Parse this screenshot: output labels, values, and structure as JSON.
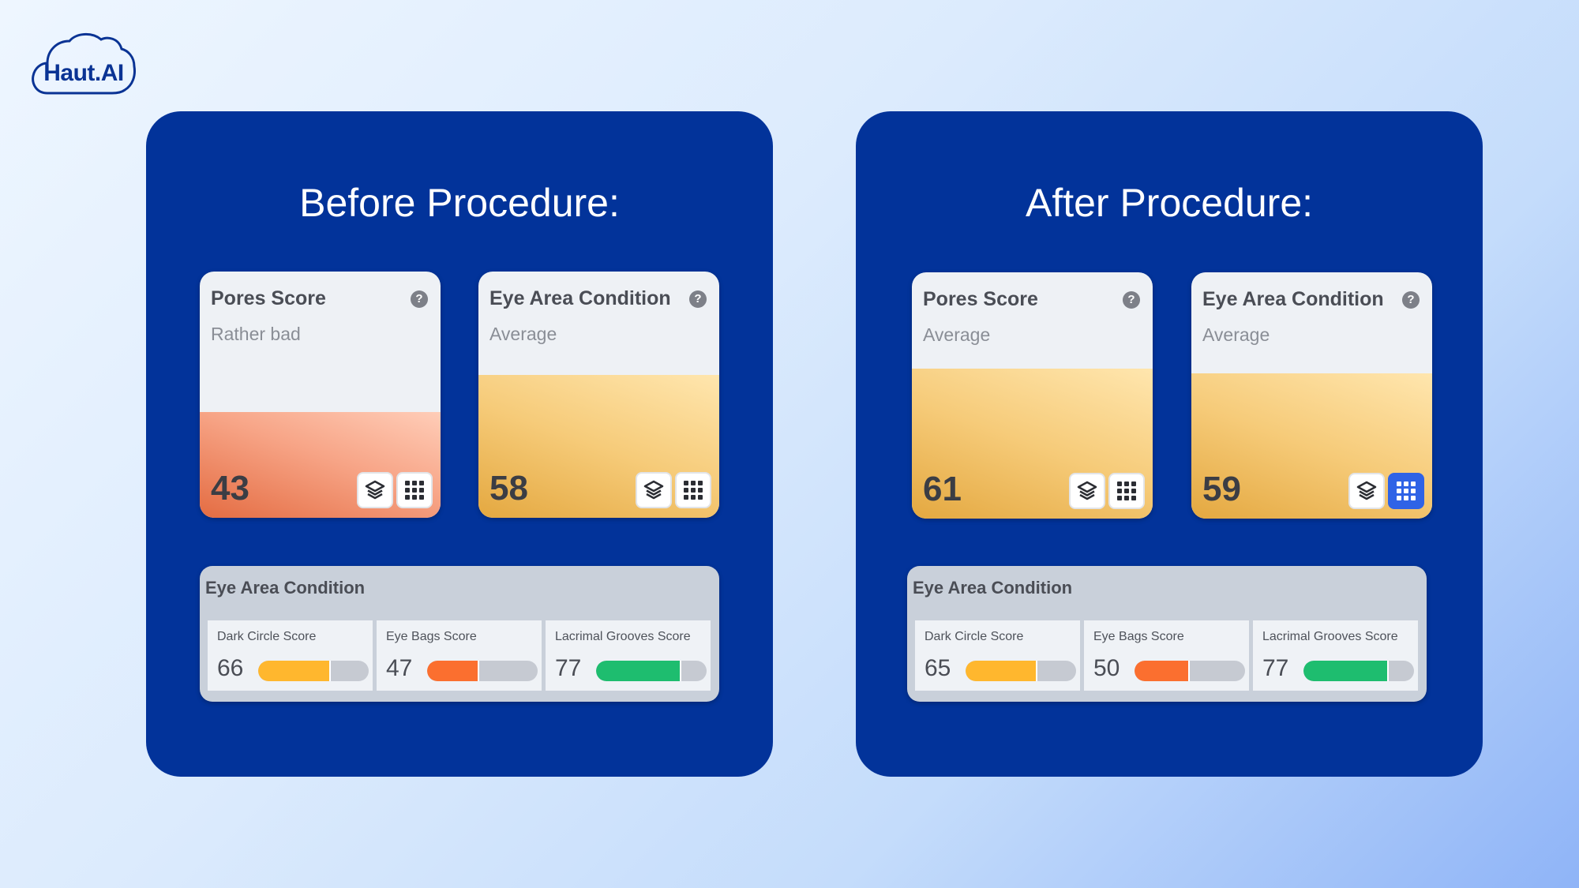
{
  "logo": {
    "text": "Haut.AI"
  },
  "panels": [
    {
      "title": "Before Procedure:",
      "cards": [
        {
          "title": "Pores Score",
          "status": "Rather bad",
          "value": "43",
          "level": 0.43,
          "grid_active": false
        },
        {
          "title": "Eye Area Condition",
          "status": "Average",
          "value": "58",
          "level": 0.58,
          "grid_active": false
        }
      ],
      "detail": {
        "title": "Eye Area Condition",
        "metrics": [
          {
            "label": "Dark Circle Score",
            "value": "66",
            "level": 0.66,
            "color": "#ffb72e"
          },
          {
            "label": "Eye Bags Score",
            "value": "47",
            "level": 0.47,
            "color": "#fb6f2f"
          },
          {
            "label": "Lacrimal Grooves Score",
            "value": "77",
            "level": 0.77,
            "color": "#1ebd6f"
          }
        ]
      }
    },
    {
      "title": "After Procedure:",
      "cards": [
        {
          "title": "Pores Score",
          "status": "Average",
          "value": "61",
          "level": 0.61,
          "grid_active": false
        },
        {
          "title": "Eye Area Condition",
          "status": "Average",
          "value": "59",
          "level": 0.59,
          "grid_active": true
        }
      ],
      "detail": {
        "title": "Eye Area Condition",
        "metrics": [
          {
            "label": "Dark Circle Score",
            "value": "65",
            "level": 0.65,
            "color": "#ffb72e"
          },
          {
            "label": "Eye Bags Score",
            "value": "50",
            "level": 0.5,
            "color": "#fb6f2f"
          },
          {
            "label": "Lacrimal Grooves Score",
            "value": "77",
            "level": 0.77,
            "color": "#1ebd6f"
          }
        ]
      }
    }
  ],
  "colors": {
    "panel_bg": "#02339a",
    "accent_blue": "#2f63e6",
    "brand_navy": "#0a3394"
  }
}
